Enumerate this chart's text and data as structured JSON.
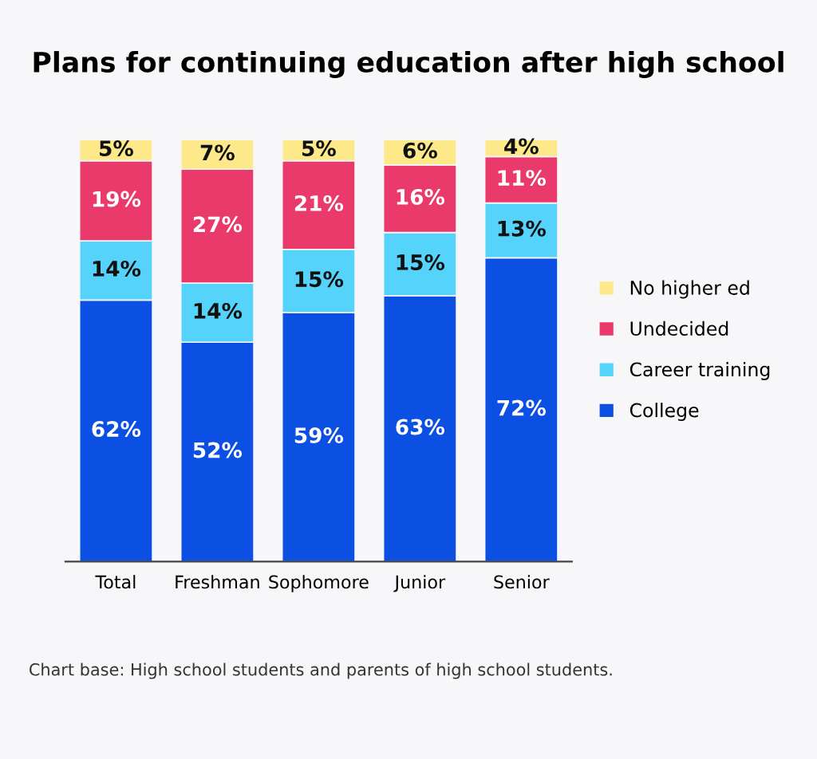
{
  "chart_data": {
    "type": "bar",
    "title": "Plans for continuing education after high school",
    "categories": [
      "Total",
      "Freshman",
      "Sophomore",
      "Junior",
      "Senior"
    ],
    "stacked": true,
    "series": [
      {
        "name": "College",
        "color": "#0b4fe3",
        "values": [
          62,
          52,
          59,
          63,
          72
        ],
        "value_labels": [
          "62%",
          "52%",
          "59%",
          "63%",
          "72%"
        ]
      },
      {
        "name": "Career training",
        "color": "#55d3fb",
        "values": [
          14,
          14,
          15,
          15,
          13
        ],
        "value_labels": [
          "14%",
          "14%",
          "15%",
          "15%",
          "13%"
        ]
      },
      {
        "name": "Undecided",
        "color": "#ea3a6c",
        "values": [
          19,
          27,
          21,
          16,
          11
        ],
        "value_labels": [
          "19%",
          "27%",
          "21%",
          "16%",
          "11%"
        ]
      },
      {
        "name": "No higher ed",
        "color": "#fde88a",
        "values": [
          5,
          7,
          5,
          6,
          4
        ],
        "value_labels": [
          "5%",
          "7%",
          "5%",
          "6%",
          "4%"
        ]
      }
    ],
    "legend": "right",
    "tick_labels": "x",
    "grid": false,
    "annotations": [
      "Chart base: High school students and parents of high school students."
    ]
  }
}
